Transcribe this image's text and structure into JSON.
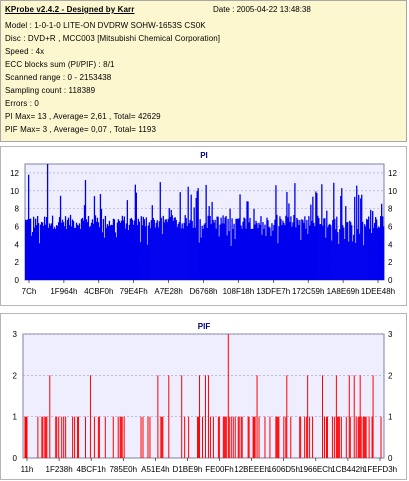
{
  "info": {
    "title": "KProbe v2.4.2 - Designed by Karr",
    "date": "Date : 2005-04-22 13:48:38",
    "lines": [
      "Model : 1-0-1-0 LITE-ON DVDRW SOHW-1653S CS0K",
      "Disc : DVD+R , MCC003 [Mitsubishi Chemical Corporation]",
      "Speed : 4x",
      "ECC blocks sum (PI/PIF) : 8/1",
      "Scanned range : 0 - 2153438",
      "Sampling count : 118389",
      "Errors : 0",
      "PI Max= 13 , Average= 2,61 , Total= 42629",
      "PIF Max= 3 , Average= 0,07 , Total= 1193"
    ]
  },
  "charts": {
    "pi": {
      "title": "PI",
      "ylim": [
        0,
        13
      ],
      "yticks": [
        0,
        2,
        4,
        6,
        8,
        10,
        12
      ],
      "xticks": [
        "7Ch",
        "1F964h",
        "4CBF0h",
        "79E4Fh",
        "A7E28h",
        "D6768h",
        "108F18h",
        "13DFE7h",
        "172C59h",
        "1A8E69h",
        "1DEE48h"
      ],
      "colors": {
        "plot_bg": "#eeeeff",
        "line": "#0000ff",
        "fill": "#0000ee",
        "grid": "#a0a0c8"
      },
      "band_mean": 6.5,
      "max": 13
    },
    "pif": {
      "title": "PIF",
      "ylim": [
        0,
        3
      ],
      "yticks": [
        0,
        1,
        2,
        3
      ],
      "xticks": [
        "11h",
        "1F238h",
        "4BCF1h",
        "785E0h",
        "A51E4h",
        "D1BE9h",
        "FE00Fh",
        "12BEEEh",
        "1606D5h",
        "1966ECh",
        "1CB442h",
        "1FEFD3h"
      ],
      "colors": {
        "plot_bg": "#eeeeff",
        "bar": "#ff0000",
        "grid": "#a0a0c8"
      },
      "max": 3
    }
  }
}
